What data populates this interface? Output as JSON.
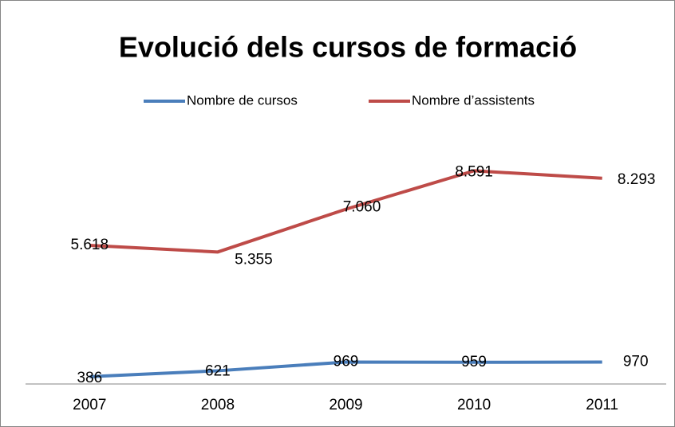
{
  "chart_data": {
    "type": "line",
    "title": "Evolució dels cursos de formació",
    "categories": [
      "2007",
      "2008",
      "2009",
      "2010",
      "2011"
    ],
    "series": [
      {
        "name": "Nombre de cursos",
        "color": "#4a7ebb",
        "values": [
          386,
          621,
          969,
          959,
          970
        ]
      },
      {
        "name": "Nombre d’assistents",
        "color": "#be4b48",
        "values": [
          5618,
          5355,
          7060,
          8591,
          8293
        ],
        "value_labels": [
          "5.618",
          "5.355",
          "7.060",
          "8.591",
          "8.293"
        ]
      }
    ],
    "ylim": [
      0,
      10000
    ],
    "legend": "top"
  }
}
